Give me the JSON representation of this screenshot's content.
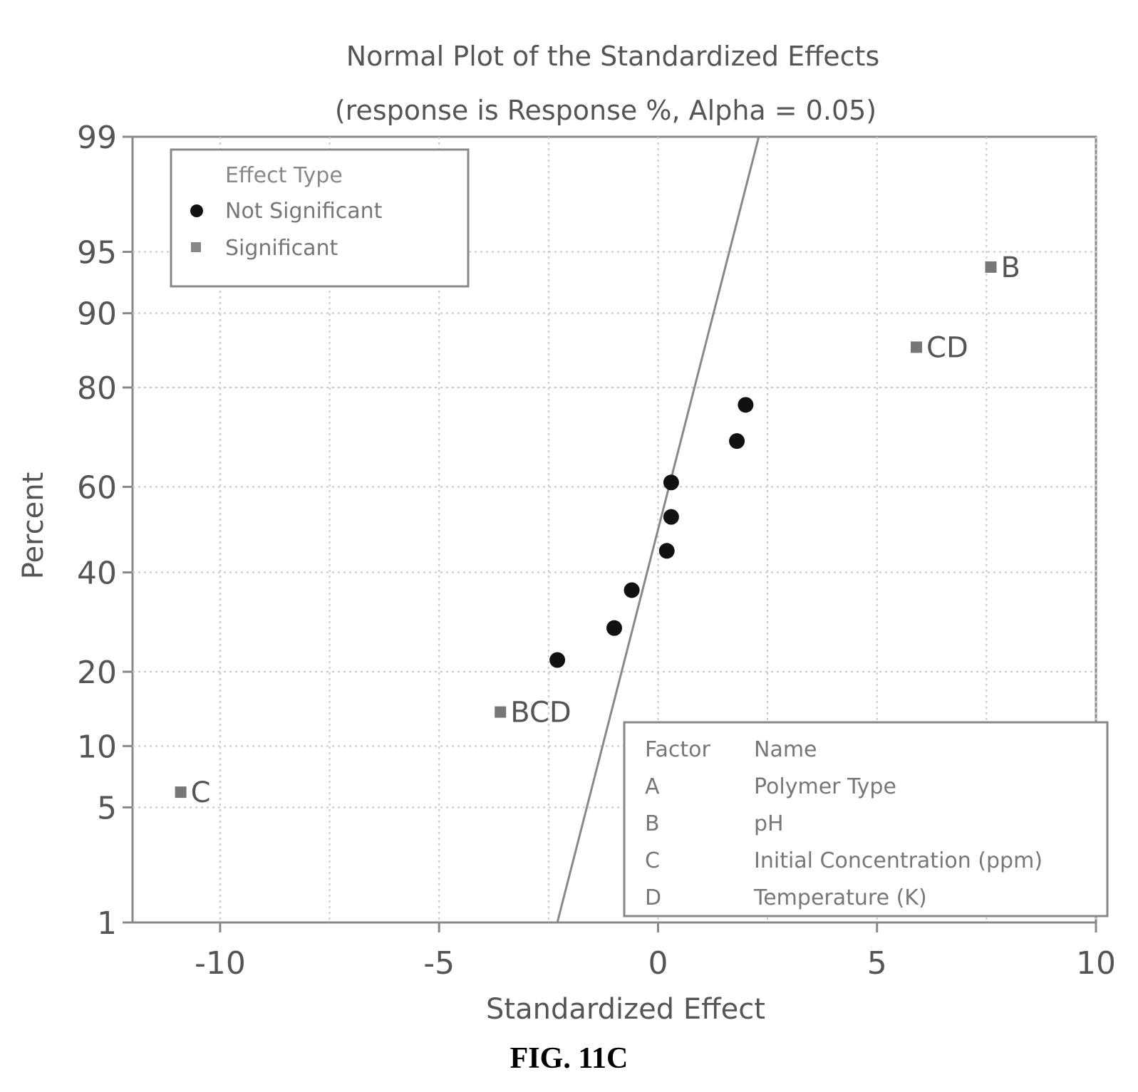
{
  "chart_data": {
    "type": "scatter",
    "title": "Normal Plot of the Standardized Effects",
    "subtitle": "(response is Response %, Alpha = 0.05)",
    "xlabel": "Standardized Effect",
    "ylabel": "Percent",
    "x_ticks": [
      -10,
      -5,
      0,
      5,
      10
    ],
    "x_tick_labels": [
      "-10",
      "-5",
      "0",
      "5",
      "10"
    ],
    "y_ticks": [
      1,
      5,
      10,
      20,
      40,
      60,
      80,
      90,
      95,
      99
    ],
    "y_tick_labels": [
      "1",
      "5",
      "10",
      "20",
      "40",
      "60",
      "80",
      "90",
      "95",
      "99"
    ],
    "y_scale": "normal-probability",
    "xlim": [
      -12,
      10
    ],
    "ylim": [
      1,
      99
    ],
    "grid": true,
    "reference_line": {
      "points": [
        [
          -2.3,
          1
        ],
        [
          2.3,
          99
        ]
      ]
    },
    "legend": {
      "title": "Effect Type",
      "placement": "top-left",
      "items": [
        {
          "label": "Not Significant",
          "marker": "circle",
          "color": "#111111"
        },
        {
          "label": "Significant",
          "marker": "square",
          "color": "#777777"
        }
      ]
    },
    "series": [
      {
        "name": "Not Significant",
        "marker": "circle",
        "color": "#111111",
        "points": [
          {
            "x": -2.3,
            "y": 22
          },
          {
            "x": -1.0,
            "y": 28
          },
          {
            "x": -0.6,
            "y": 36
          },
          {
            "x": 0.2,
            "y": 45
          },
          {
            "x": 0.3,
            "y": 53
          },
          {
            "x": 0.3,
            "y": 61
          },
          {
            "x": 1.8,
            "y": 70
          },
          {
            "x": 2.0,
            "y": 77
          }
        ]
      },
      {
        "name": "Significant",
        "marker": "square",
        "color": "#777777",
        "points": [
          {
            "x": -10.9,
            "y": 6,
            "label": "C"
          },
          {
            "x": -3.6,
            "y": 14,
            "label": "BCD"
          },
          {
            "x": 5.9,
            "y": 86,
            "label": "CD"
          },
          {
            "x": 7.6,
            "y": 94,
            "label": "B"
          }
        ]
      }
    ],
    "factor_table": {
      "placement": "bottom-right",
      "headers": [
        "Factor",
        "Name"
      ],
      "rows": [
        [
          "A",
          "Polymer Type"
        ],
        [
          "B",
          "pH"
        ],
        [
          "C",
          "Initial Concentration (ppm)"
        ],
        [
          "D",
          "Temperature (K)"
        ]
      ]
    }
  },
  "figure_caption": "FIG. 11C"
}
